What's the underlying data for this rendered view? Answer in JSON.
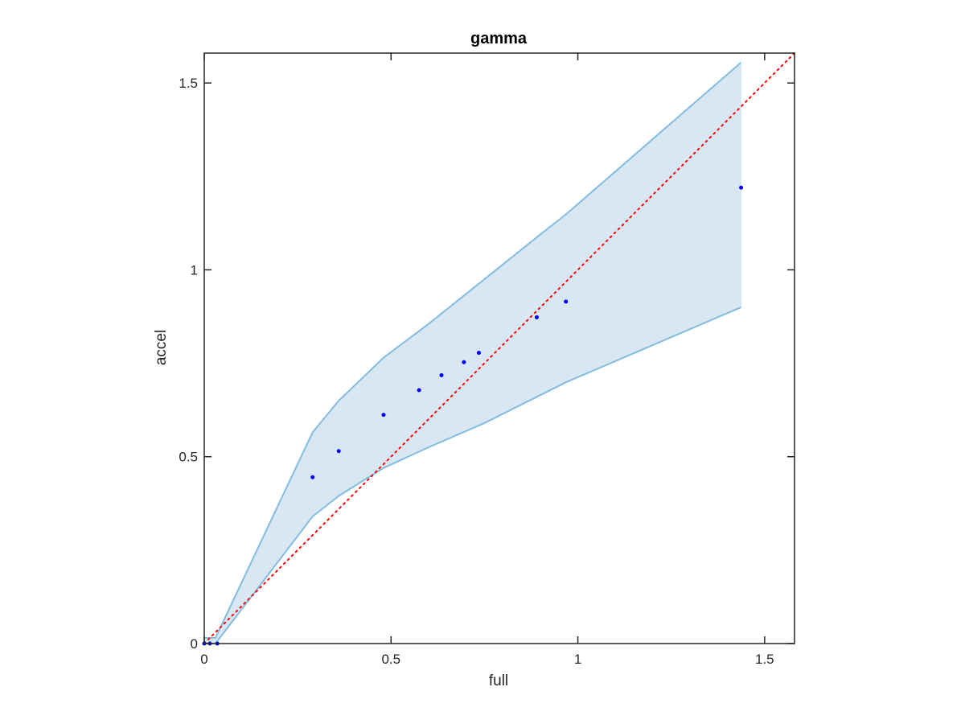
{
  "chart_data": {
    "type": "scatter",
    "title": "gamma",
    "xlabel": "full",
    "ylabel": "accel",
    "xlim": [
      0,
      1.58
    ],
    "ylim": [
      0,
      1.58
    ],
    "xticks": [
      0,
      0.5,
      1,
      1.5
    ],
    "xtick_labels": [
      "0",
      "0.5",
      "1",
      "1.5"
    ],
    "yticks": [
      0,
      0.5,
      1,
      1.5
    ],
    "ytick_labels": [
      "0",
      "0.5",
      "1",
      "1.5"
    ],
    "grid": false,
    "box": true,
    "points": {
      "color": "#0000ff",
      "x": [
        0.0,
        0.015,
        0.035,
        0.29,
        0.36,
        0.48,
        0.575,
        0.635,
        0.695,
        0.735,
        0.89,
        0.968,
        1.437
      ],
      "y": [
        0.0,
        0.0,
        0.0,
        0.445,
        0.515,
        0.612,
        0.678,
        0.718,
        0.753,
        0.778,
        0.873,
        0.915,
        1.22
      ]
    },
    "band": {
      "fill_color": "#d9e7f3",
      "line_color": "#82bce0",
      "x": [
        0.0,
        0.03,
        0.29,
        0.36,
        0.48,
        0.6,
        0.75,
        0.9,
        0.97,
        1.437
      ],
      "upper": [
        0.015,
        0.015,
        0.565,
        0.65,
        0.765,
        0.855,
        0.975,
        1.095,
        1.15,
        1.555
      ],
      "lower": [
        0.0,
        0.0,
        0.34,
        0.395,
        0.47,
        0.525,
        0.59,
        0.665,
        0.7,
        0.9
      ]
    },
    "reference_line": {
      "style": "dotted",
      "color": "#ff0000",
      "x": [
        0,
        1.58
      ],
      "y": [
        0,
        1.58
      ]
    }
  }
}
